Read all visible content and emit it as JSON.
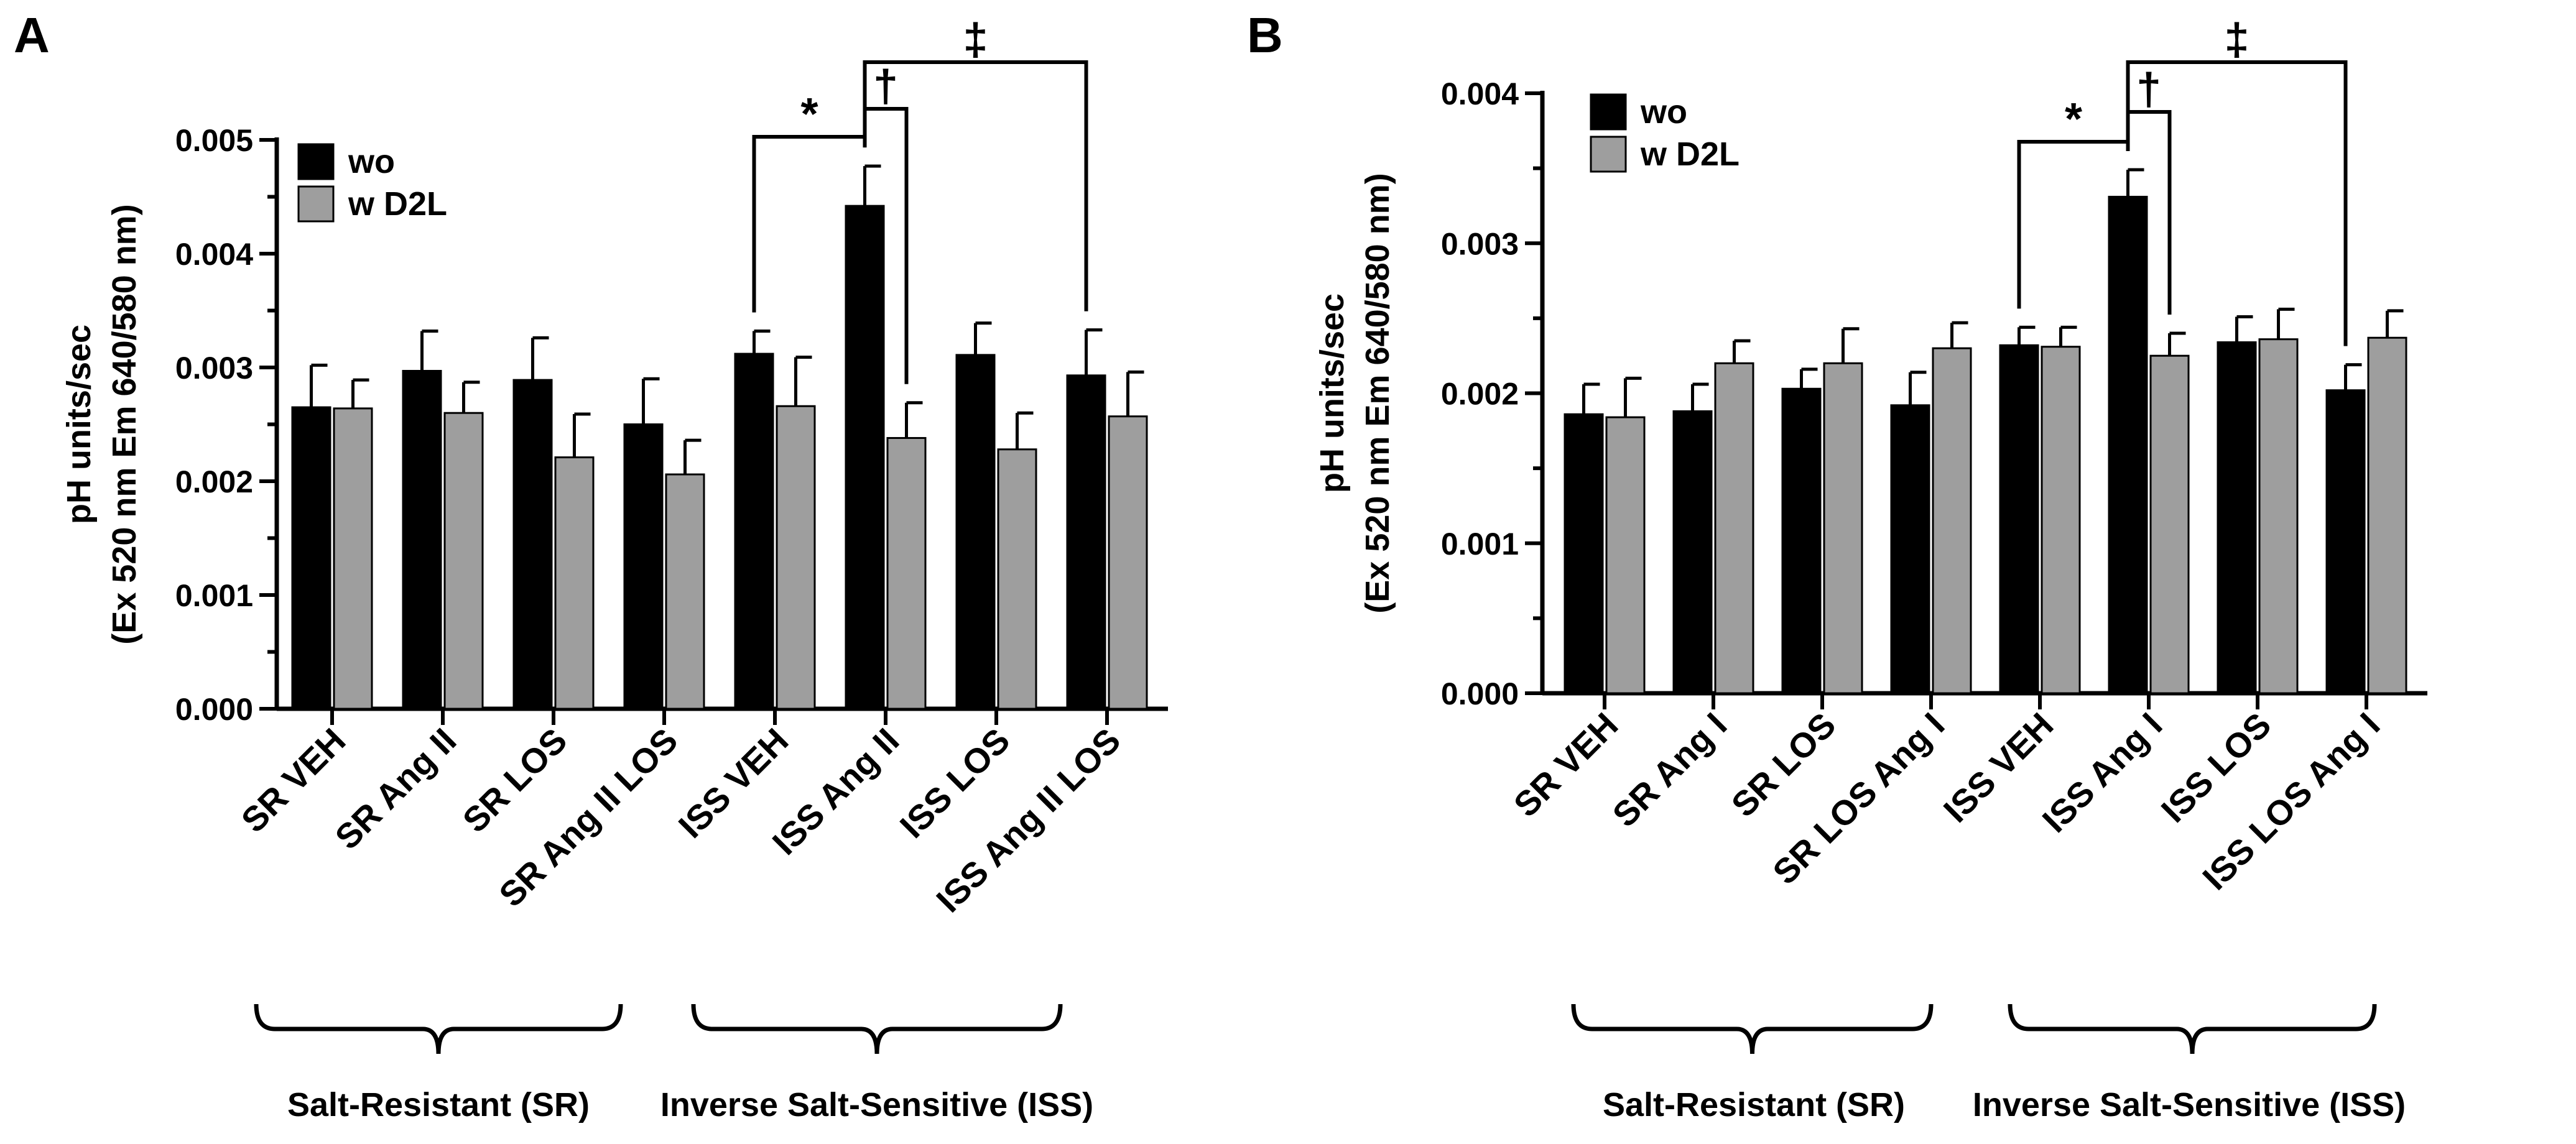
{
  "colors": {
    "wo": "#000000",
    "w_d2l": "#9e9e9e",
    "axis": "#000000"
  },
  "chart_data": [
    {
      "panel": "A",
      "type": "bar",
      "ylabel_line1": "pH units/sec",
      "ylabel_line2": "(Ex 520 nm Em 640/580 nm)",
      "ylim": [
        0,
        0.005
      ],
      "yticks": [
        "0.000",
        "0.001",
        "0.002",
        "0.003",
        "0.004",
        "0.005"
      ],
      "categories": [
        "SR VEH",
        "SR Ang II",
        "SR LOS",
        "SR Ang II LOS",
        "ISS VEH",
        "ISS Ang II",
        "ISS LOS",
        "ISS Ang II LOS"
      ],
      "series": [
        {
          "name": "wo",
          "values": [
            0.00265,
            0.00297,
            0.00289,
            0.0025,
            0.00312,
            0.00442,
            0.00311,
            0.00293
          ],
          "errors": [
            0.00037,
            0.00035,
            0.00037,
            0.0004,
            0.0002,
            0.00035,
            0.00028,
            0.0004
          ]
        },
        {
          "name": "w D2L",
          "values": [
            0.00264,
            0.0026,
            0.00221,
            0.00206,
            0.00266,
            0.00238,
            0.00228,
            0.00257
          ],
          "errors": [
            0.00025,
            0.00027,
            0.00038,
            0.0003,
            0.00043,
            0.00031,
            0.00032,
            0.00039
          ]
        }
      ],
      "legend": [
        "wo",
        "w D2L"
      ],
      "groups": [
        "Salt-Resistant (SR)",
        "Inverse Salt-Sensitive (ISS)"
      ],
      "annotations": [
        "*",
        "†",
        "‡"
      ]
    },
    {
      "panel": "B",
      "type": "bar",
      "ylabel_line1": "pH units/sec",
      "ylabel_line2": "(Ex 520 nm Em 640/580 nm)",
      "ylim": [
        0,
        0.004
      ],
      "yticks": [
        "0.000",
        "0.001",
        "0.002",
        "0.003",
        "0.004"
      ],
      "categories": [
        "SR VEH",
        "SR Ang I",
        "SR LOS",
        "SR LOS Ang I",
        "ISS VEH",
        "ISS Ang I",
        "ISS LOS",
        "ISS LOS Ang I"
      ],
      "series": [
        {
          "name": "wo",
          "values": [
            0.00186,
            0.00188,
            0.00203,
            0.00192,
            0.00232,
            0.00331,
            0.00234,
            0.00202
          ],
          "errors": [
            0.0002,
            0.00018,
            0.00013,
            0.00022,
            0.00012,
            0.00018,
            0.00017,
            0.00017
          ]
        },
        {
          "name": "w D2L",
          "values": [
            0.00184,
            0.0022,
            0.0022,
            0.0023,
            0.00231,
            0.00225,
            0.00236,
            0.00237
          ],
          "errors": [
            0.00026,
            0.00015,
            0.00023,
            0.00017,
            0.00013,
            0.00015,
            0.0002,
            0.00018
          ]
        }
      ],
      "legend": [
        "wo",
        "w D2L"
      ],
      "groups": [
        "Salt-Resistant (SR)",
        "Inverse Salt-Sensitive (ISS)"
      ],
      "annotations": [
        "*",
        "†",
        "‡"
      ]
    }
  ]
}
